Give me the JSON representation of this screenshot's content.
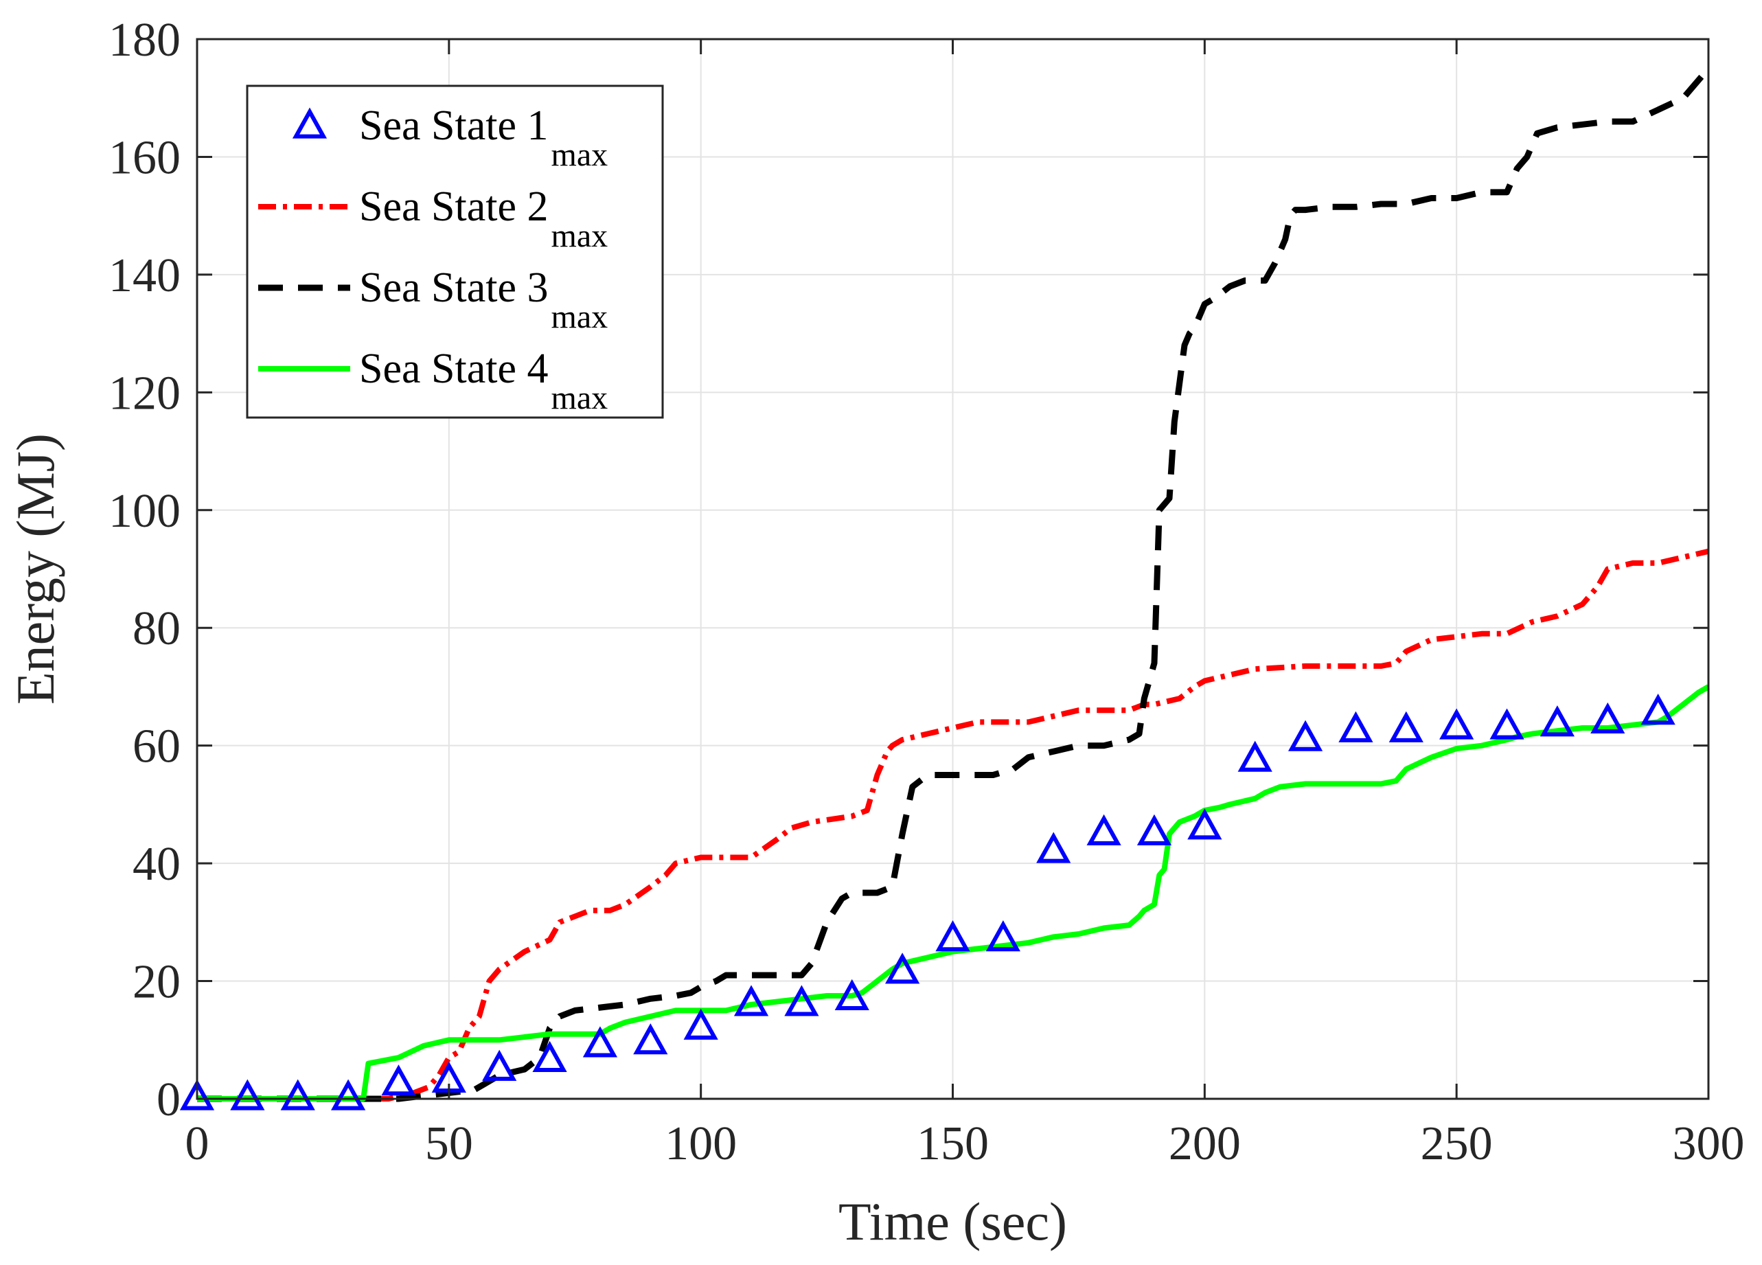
{
  "chart_data": {
    "type": "line",
    "title": "",
    "xlabel": "Time (sec)",
    "ylabel": "Energy (MJ)",
    "xlim": [
      0,
      300
    ],
    "ylim": [
      0,
      180
    ],
    "x_ticks": [
      0,
      50,
      100,
      150,
      200,
      250,
      300
    ],
    "y_ticks": [
      0,
      20,
      40,
      60,
      80,
      100,
      120,
      140,
      160,
      180
    ],
    "x_tick_labels": [
      "0",
      "50",
      "100",
      "150",
      "200",
      "250",
      "300"
    ],
    "y_tick_labels": [
      "0",
      "20",
      "40",
      "60",
      "80",
      "100",
      "120",
      "140",
      "160",
      "180"
    ],
    "grid": true,
    "legend_position": "top-left",
    "series": [
      {
        "name": "Sea State 1",
        "subscript": "max",
        "style": "triangle-markers",
        "color": "#0000ff",
        "x": [
          0,
          10,
          20,
          30,
          40,
          50,
          60,
          70,
          80,
          90,
          100,
          110,
          120,
          130,
          140,
          150,
          160,
          170,
          180,
          190,
          200,
          210,
          220,
          230,
          240,
          250,
          260,
          270,
          280,
          290
        ],
        "y": [
          0,
          0,
          0,
          0,
          2.5,
          3,
          5,
          6.5,
          9,
          9.5,
          12,
          16,
          16,
          17,
          21.5,
          27,
          27,
          42,
          45,
          45,
          46,
          57.5,
          61,
          62.5,
          62.5,
          63,
          63,
          63.5,
          64,
          65.5
        ]
      },
      {
        "name": "Sea State 2",
        "subscript": "max",
        "style": "dash-dot",
        "color": "#ff0000",
        "x": [
          0,
          38,
          43,
          46,
          48,
          50,
          52,
          54,
          56,
          58,
          60,
          65,
          70,
          72,
          75,
          78,
          82,
          85,
          90,
          93,
          95,
          100,
          105,
          108,
          110,
          115,
          118,
          122,
          130,
          133,
          135,
          137,
          138,
          140,
          145,
          150,
          155,
          160,
          165,
          170,
          175,
          180,
          185,
          188,
          190,
          195,
          198,
          200,
          205,
          210,
          220,
          230,
          235,
          238,
          240,
          245,
          250,
          255,
          260,
          265,
          270,
          275,
          278,
          280,
          285,
          290,
          295,
          300
        ],
        "y": [
          0,
          0,
          1,
          2,
          4,
          7,
          8,
          12,
          14,
          20,
          22,
          25,
          27,
          30,
          31,
          32,
          32,
          33,
          36,
          38,
          40,
          41,
          41,
          41,
          41,
          44,
          46,
          47,
          48,
          49,
          55,
          59,
          60,
          61,
          62,
          63,
          64,
          64,
          64,
          65,
          66,
          66,
          66,
          67,
          67,
          68,
          70,
          71,
          72,
          73,
          73.5,
          73.5,
          73.5,
          74,
          76,
          78,
          78.5,
          79,
          79,
          81,
          82,
          84,
          87,
          90,
          91,
          91,
          92,
          93
        ]
      },
      {
        "name": "Sea State 3",
        "subscript": "max",
        "style": "dashed",
        "color": "#000000",
        "x": [
          0,
          30,
          32,
          40,
          45,
          50,
          55,
          57,
          60,
          65,
          68,
          70,
          72,
          75,
          80,
          85,
          90,
          95,
          98,
          100,
          103,
          105,
          110,
          115,
          120,
          122,
          125,
          128,
          130,
          135,
          138,
          140,
          142,
          145,
          150,
          155,
          158,
          162,
          165,
          170,
          175,
          180,
          185,
          187,
          188,
          190,
          191,
          193,
          194,
          196,
          197,
          198,
          200,
          202,
          205,
          208,
          212,
          214,
          216,
          217,
          218,
          220,
          225,
          230,
          235,
          240,
          245,
          250,
          255,
          260,
          262,
          264,
          266,
          270,
          275,
          280,
          285,
          290,
          295,
          300
        ],
        "y": [
          0,
          0,
          0,
          0,
          0.5,
          1,
          1.5,
          2.5,
          4,
          5,
          7,
          12,
          14,
          15,
          15.5,
          16,
          17,
          17.5,
          18,
          19,
          20,
          21,
          21,
          21,
          21,
          23,
          30,
          34,
          35,
          35,
          36,
          45,
          53,
          55,
          55,
          55,
          55,
          56,
          58,
          59,
          60,
          60,
          61,
          62,
          68,
          74,
          100,
          102,
          115,
          128,
          130,
          131,
          135,
          136,
          138,
          139,
          139,
          142,
          146,
          150,
          151,
          151,
          151.5,
          151.5,
          152,
          152,
          153,
          153,
          154,
          154,
          158,
          160,
          164,
          165,
          165.5,
          166,
          166,
          168,
          170,
          175
        ]
      },
      {
        "name": "Sea State 4",
        "subscript": "max",
        "style": "solid",
        "color": "#00ff00",
        "x": [
          0,
          30,
          33,
          34,
          40,
          45,
          50,
          55,
          60,
          65,
          70,
          75,
          80,
          82,
          85,
          90,
          95,
          100,
          105,
          110,
          115,
          120,
          125,
          130,
          132,
          135,
          138,
          140,
          145,
          150,
          155,
          160,
          165,
          170,
          175,
          180,
          185,
          187,
          188,
          190,
          191,
          192,
          193,
          195,
          198,
          200,
          203,
          205,
          210,
          212,
          215,
          220,
          225,
          230,
          235,
          238,
          240,
          245,
          250,
          255,
          260,
          262,
          265,
          270,
          275,
          280,
          285,
          290,
          292,
          295,
          298,
          300
        ],
        "y": [
          0,
          0,
          0,
          6,
          7,
          9,
          10,
          10,
          10,
          10.5,
          11,
          11,
          11,
          12,
          13,
          14,
          15,
          15,
          15,
          16,
          16.5,
          17,
          17.5,
          17.5,
          18,
          20,
          22,
          23,
          24,
          25,
          25.5,
          26,
          26.5,
          27.5,
          28,
          29,
          29.5,
          31,
          32,
          33,
          38,
          39,
          45,
          47,
          48,
          49,
          49.5,
          50,
          51,
          52,
          53,
          53.5,
          53.5,
          53.5,
          53.5,
          54,
          56,
          58,
          59.5,
          60,
          61,
          61.5,
          62,
          62.5,
          63,
          63,
          63.5,
          64,
          65,
          67,
          69,
          70
        ]
      }
    ]
  }
}
